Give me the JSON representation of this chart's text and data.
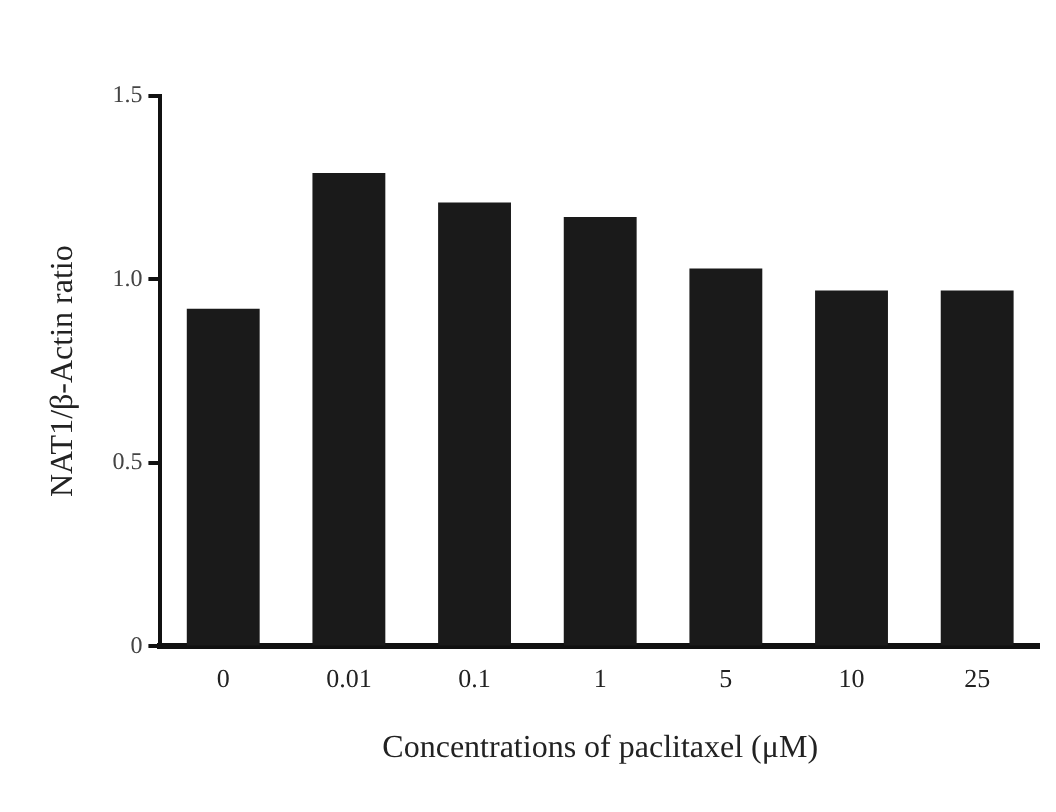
{
  "chart_data": {
    "type": "bar",
    "xlabel": "Concentrations of paclitaxel (μM)",
    "ylabel": "NAT1/β-Actin ratio",
    "categories": [
      "0",
      "0.01",
      "0.1",
      "1",
      "5",
      "10",
      "25"
    ],
    "values": [
      0.92,
      1.29,
      1.21,
      1.17,
      1.03,
      0.97,
      0.97
    ],
    "color": "#1a1a1a",
    "ylim": [
      0,
      1.5
    ],
    "yticks": [
      0,
      {
        "value": 0.5,
        "label": "0.5"
      },
      {
        "value": 1,
        "label": "1.0"
      },
      1.5
    ],
    "grid": false,
    "legend": false
  }
}
